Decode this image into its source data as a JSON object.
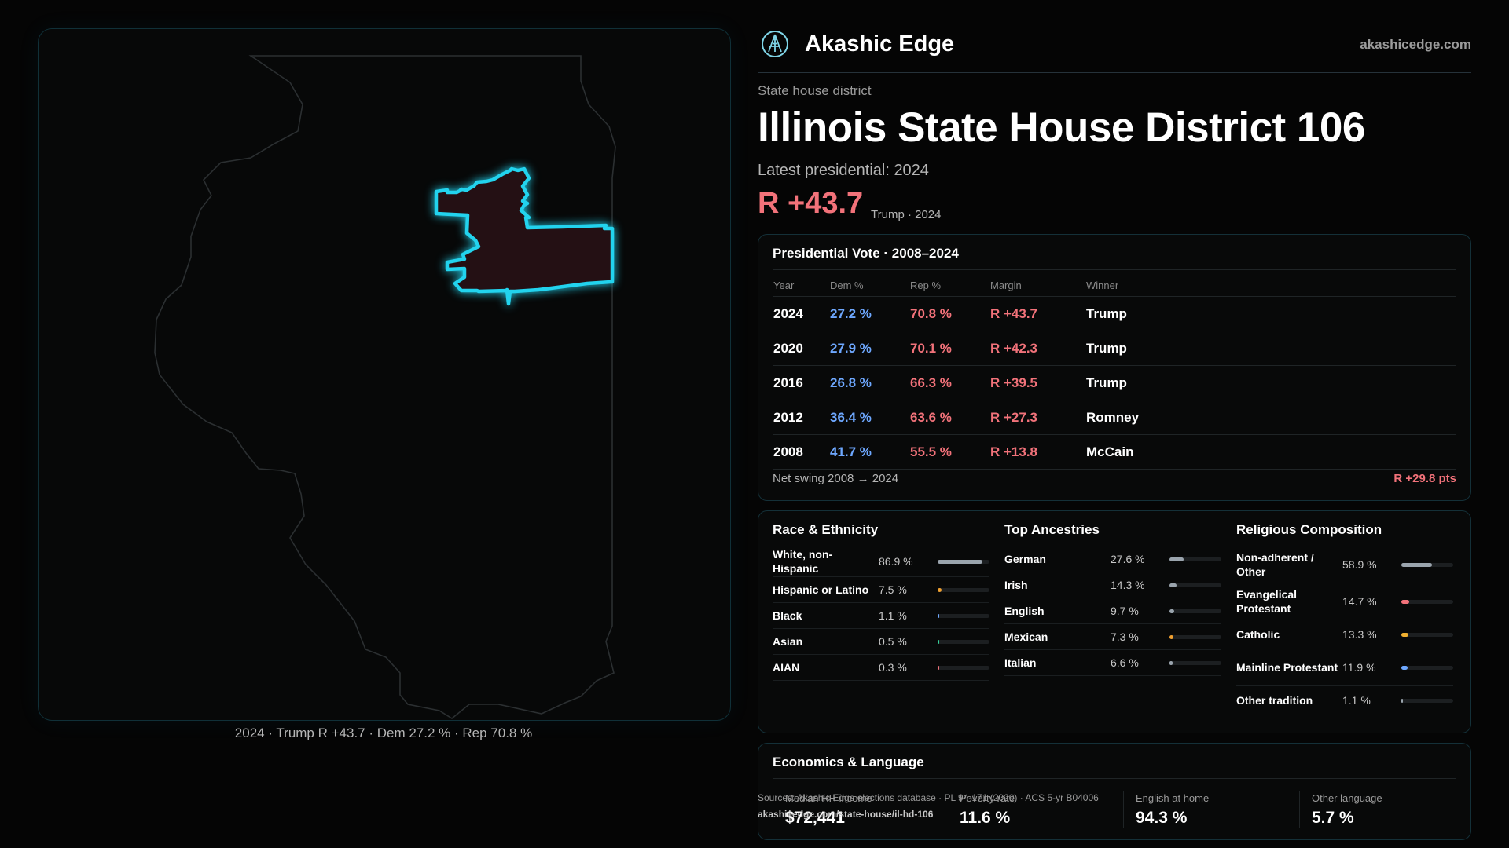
{
  "map": {
    "caption": "2024 · Trump R +43.7 · Dem 27.2 % · Rep 70.8 %",
    "colors": {
      "district_fill": "#241014",
      "district_outline": "#22d3ee",
      "state_outline": "#2b2f31"
    }
  },
  "header": {
    "brand": "Akashic Edge",
    "url": "akashicedge.com",
    "kicker": "State house district",
    "title": "Illinois State House District 106",
    "latest": "Latest presidential: 2024",
    "margin": "R +43.7",
    "margin_sub": "Trump · 2024"
  },
  "presidential": {
    "title": "Presidential Vote · 2008–2024",
    "columns": [
      "Year",
      "Dem %",
      "Rep %",
      "Margin",
      "Winner"
    ],
    "rows": [
      {
        "year": "2024",
        "dem": "27.2 %",
        "rep": "70.8 %",
        "margin": "R +43.7",
        "winner": "Trump"
      },
      {
        "year": "2020",
        "dem": "27.9 %",
        "rep": "70.1 %",
        "margin": "R +42.3",
        "winner": "Trump"
      },
      {
        "year": "2016",
        "dem": "26.8 %",
        "rep": "66.3 %",
        "margin": "R +39.5",
        "winner": "Trump"
      },
      {
        "year": "2012",
        "dem": "36.4 %",
        "rep": "63.6 %",
        "margin": "R +27.3",
        "winner": "Romney"
      },
      {
        "year": "2008",
        "dem": "41.7 %",
        "rep": "55.5 %",
        "margin": "R +13.8",
        "winner": "McCain"
      }
    ],
    "swing_label": "Net swing 2008 → 2024",
    "swing_value": "R +29.8 pts"
  },
  "race": {
    "title": "Race & Ethnicity",
    "items": [
      {
        "label": "White, non-Hispanic",
        "pct": "86.9 %",
        "value": 86.9,
        "color": "#9aa4ad"
      },
      {
        "label": "Hispanic or Latino",
        "pct": "7.5 %",
        "value": 7.5,
        "color": "#f0a030"
      },
      {
        "label": "Black",
        "pct": "1.1 %",
        "value": 1.1,
        "color": "#6ea8ff"
      },
      {
        "label": "Asian",
        "pct": "0.5 %",
        "value": 0.5,
        "color": "#34d399"
      },
      {
        "label": "AIAN",
        "pct": "0.3 %",
        "value": 0.3,
        "color": "#f2727a"
      }
    ]
  },
  "ancestries": {
    "title": "Top Ancestries",
    "items": [
      {
        "label": "German",
        "pct": "27.6 %",
        "value": 27.6,
        "color": "#9aa4ad"
      },
      {
        "label": "Irish",
        "pct": "14.3 %",
        "value": 14.3,
        "color": "#9aa4ad"
      },
      {
        "label": "English",
        "pct": "9.7 %",
        "value": 9.7,
        "color": "#9aa4ad"
      },
      {
        "label": "Mexican",
        "pct": "7.3 %",
        "value": 7.3,
        "color": "#f0a030"
      },
      {
        "label": "Italian",
        "pct": "6.6 %",
        "value": 6.6,
        "color": "#9aa4ad"
      }
    ]
  },
  "religion": {
    "title": "Religious Composition",
    "items": [
      {
        "label": "Non-adherent / Other",
        "pct": "58.9 %",
        "value": 58.9,
        "color": "#9aa4ad"
      },
      {
        "label": "Evangelical Protestant",
        "pct": "14.7 %",
        "value": 14.7,
        "color": "#f2727a"
      },
      {
        "label": "Catholic",
        "pct": "13.3 %",
        "value": 13.3,
        "color": "#f0b030"
      },
      {
        "label": "Mainline Protestant",
        "pct": "11.9 %",
        "value": 11.9,
        "color": "#6ea8ff"
      },
      {
        "label": "Other tradition",
        "pct": "1.1 %",
        "value": 1.1,
        "color": "#9aa4ad"
      }
    ]
  },
  "economics": {
    "title": "Economics & Language",
    "stats": [
      {
        "label": "Median HH income",
        "value": "$72,441"
      },
      {
        "label": "Poverty rate",
        "value": "11.6 %"
      },
      {
        "label": "English at home",
        "value": "94.3 %"
      },
      {
        "label": "Other language",
        "value": "5.7 %"
      }
    ]
  },
  "footer": {
    "sources": "Sources: Akashic Edge elections database · PL 94-171 (2020) · ACS 5-yr B04006",
    "page_url": "akashicedge.com/state-house/il-hd-106"
  }
}
